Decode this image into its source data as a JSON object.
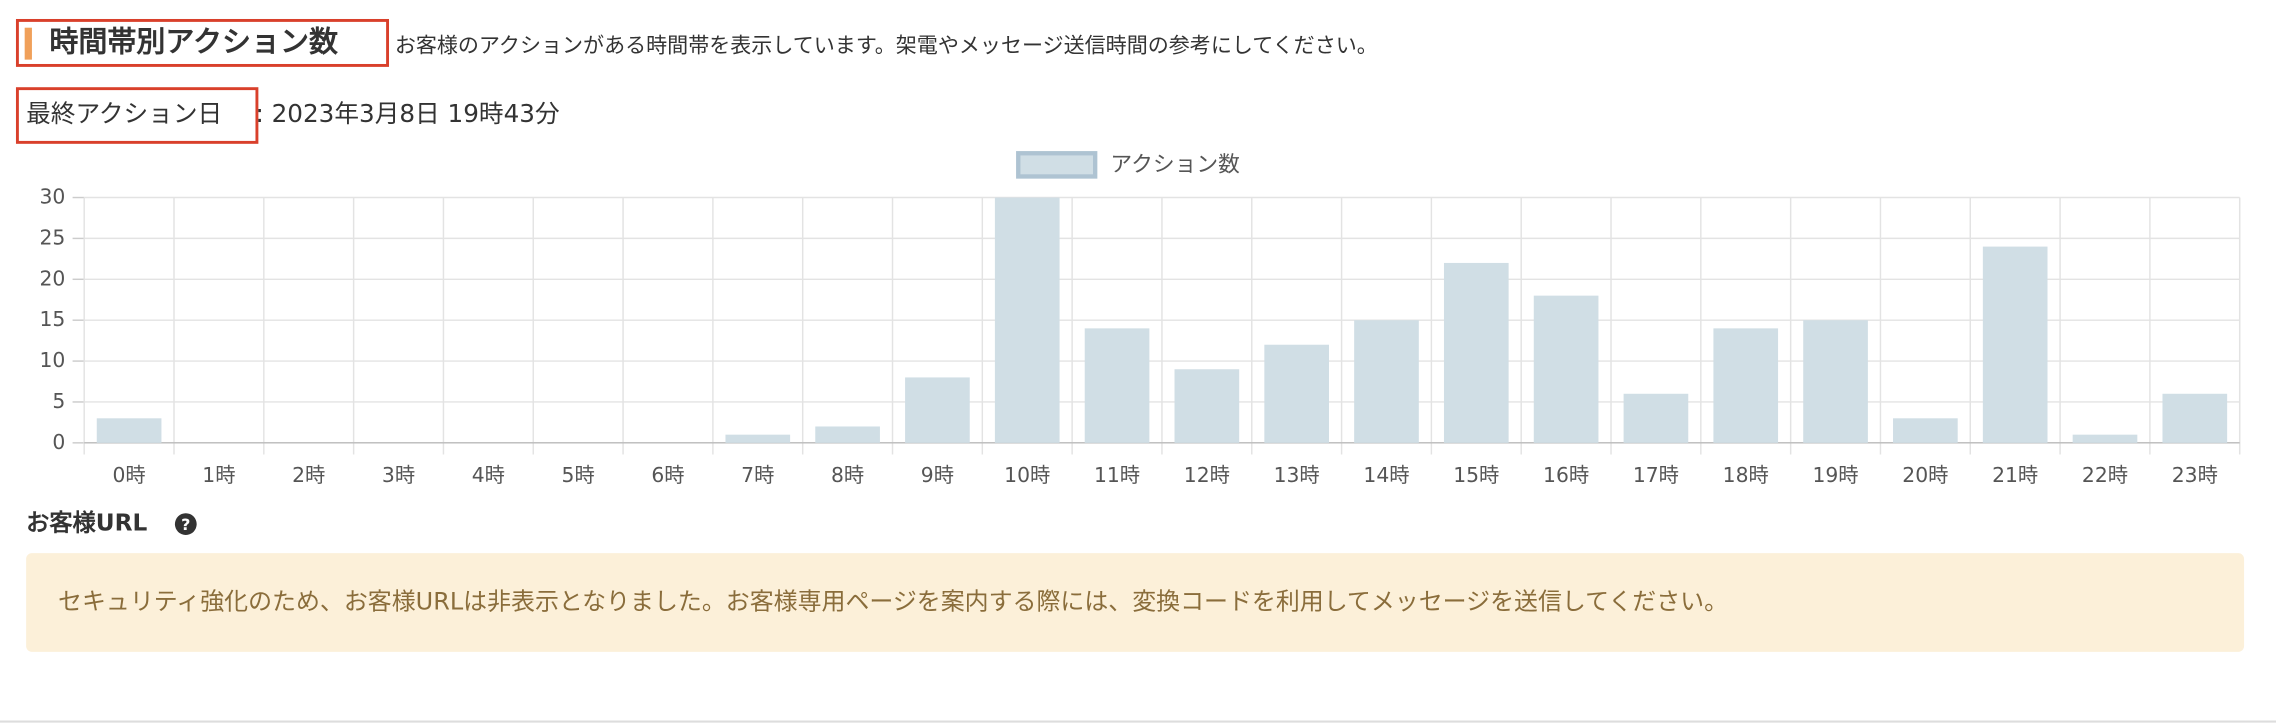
{
  "header": {
    "title": "時間帯別アクション数",
    "description": "お客様のアクションがある時間帯を表示しています。架電やメッセージ送信時間の参考にしてください。"
  },
  "last_action": {
    "label": "最終アクション日",
    "value": ": 2023年3月8日 19時43分"
  },
  "chart_data": {
    "type": "bar",
    "categories": [
      "0時",
      "1時",
      "2時",
      "3時",
      "4時",
      "5時",
      "6時",
      "7時",
      "8時",
      "9時",
      "10時",
      "11時",
      "12時",
      "13時",
      "14時",
      "15時",
      "16時",
      "17時",
      "18時",
      "19時",
      "20時",
      "21時",
      "22時",
      "23時"
    ],
    "series": [
      {
        "name": "アクション数",
        "color": "#d0dee5",
        "values": [
          3,
          0,
          0,
          0,
          0,
          0,
          0,
          1,
          2,
          8,
          30,
          14,
          9,
          12,
          15,
          22,
          18,
          6,
          14,
          15,
          3,
          24,
          1,
          6
        ]
      }
    ],
    "ylim": [
      0,
      30
    ],
    "yticks": [
      0,
      5,
      10,
      15,
      20,
      25,
      30
    ],
    "grid": true,
    "legend": "top"
  },
  "customer_url": {
    "heading": "お客様URL",
    "notice": "セキュリティ強化のため、お客様URLは非表示となりました。お客様専用ページを案内する際には、変換コードを利用してメッセージを送信してください。"
  }
}
